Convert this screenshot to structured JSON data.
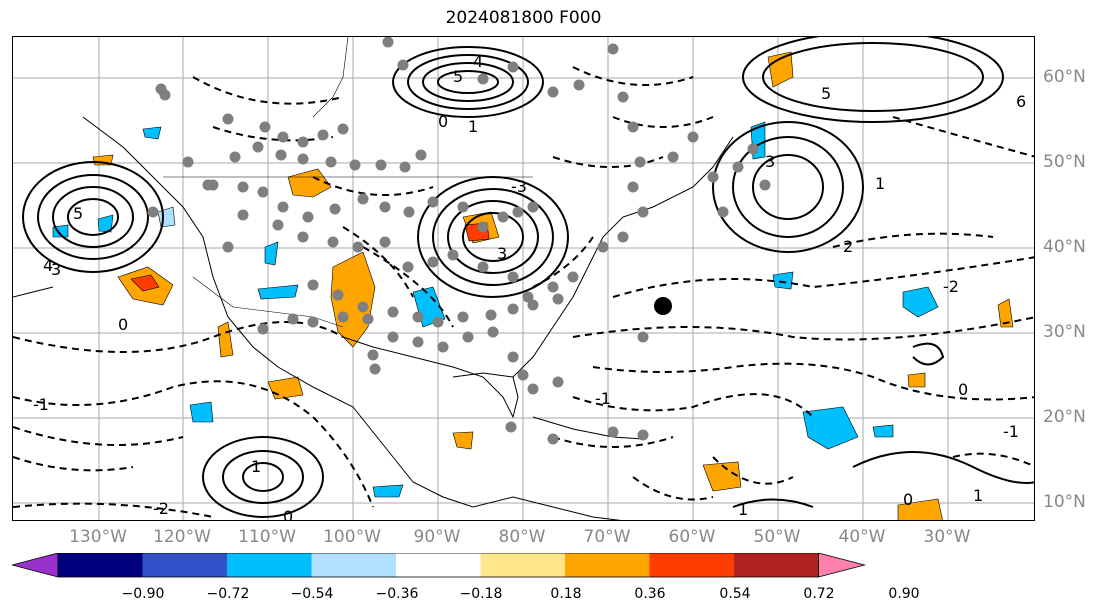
{
  "title": "2024081800 F000",
  "map": {
    "lat_labels": [
      "60°N",
      "50°N",
      "40°N",
      "30°N",
      "20°N",
      "10°N"
    ],
    "lon_labels": [
      "130°W",
      "120°W",
      "110°W",
      "100°W",
      "90°W",
      "80°W",
      "70°W",
      "60°W",
      "50°W",
      "40°W",
      "30°W"
    ],
    "contour_labels": [
      "5",
      "4",
      "3",
      "2",
      "1",
      "0",
      "-1",
      "-2",
      "6",
      "-3"
    ],
    "marker_color": "#7f7f7f",
    "highlight_marker_color": "#000000"
  },
  "colorbar": {
    "ticks": [
      "−0.90",
      "−0.72",
      "−0.54",
      "−0.36",
      "−0.18",
      "0.18",
      "0.36",
      "0.54",
      "0.72",
      "0.90"
    ],
    "colors": [
      "#9932cc",
      "#000080",
      "#3151c8",
      "#00bfff",
      "#b0e0ff",
      "#ffffff",
      "#ffe68a",
      "#ffa500",
      "#ff3d00",
      "#b22222",
      "#ff80ab"
    ]
  }
}
